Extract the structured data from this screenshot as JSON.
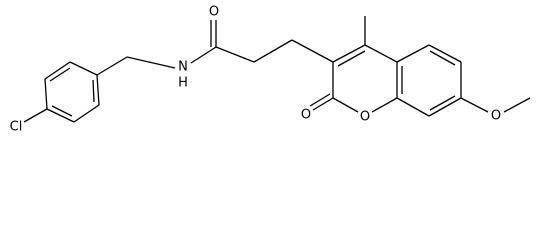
{
  "atoms": {
    "chlorine": "Cl",
    "nitrogen": "N",
    "hydrogen": "H",
    "carbonyl_oxygen": "O",
    "lactone_carbonyl_oxygen": "O",
    "ring_oxygen": "O",
    "methoxy_oxygen": "O"
  }
}
